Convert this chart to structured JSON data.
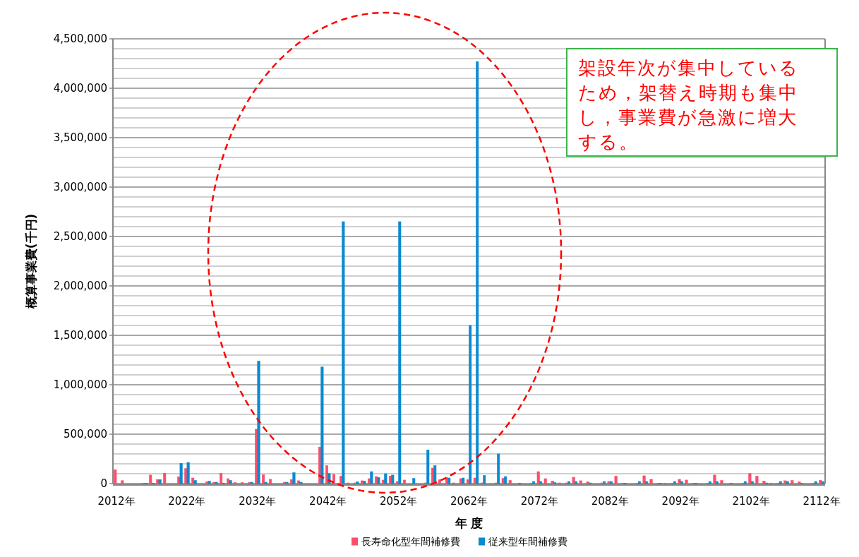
{
  "chart_data": {
    "type": "bar",
    "categories": [
      "2012年",
      null,
      null,
      null,
      null,
      null,
      null,
      null,
      null,
      null,
      "2022年",
      null,
      null,
      null,
      null,
      null,
      null,
      null,
      null,
      null,
      "2032年",
      null,
      null,
      null,
      null,
      null,
      null,
      null,
      null,
      null,
      "2042年",
      null,
      null,
      null,
      null,
      null,
      null,
      null,
      null,
      null,
      "2052年",
      null,
      null,
      null,
      null,
      null,
      null,
      null,
      null,
      null,
      "2062年",
      null,
      null,
      null,
      null,
      null,
      null,
      null,
      null,
      null,
      "2072年",
      null,
      null,
      null,
      null,
      null,
      null,
      null,
      null,
      null,
      "2082年",
      null,
      null,
      null,
      null,
      null,
      null,
      null,
      null,
      null,
      "2092年",
      null,
      null,
      null,
      null,
      null,
      null,
      null,
      null,
      null,
      "2102年",
      null,
      null,
      null,
      null,
      null,
      null,
      null,
      null,
      null,
      "2112年"
    ],
    "xlabel": "年 度",
    "ylabel": "概算事業費(千円)",
    "series": [
      {
        "name": "長寿命化型年間補修費",
        "color": "#ff4d6a",
        "values": [
          140000,
          30000,
          null,
          null,
          5000,
          86000,
          40000,
          105000,
          null,
          69000,
          152000,
          57000,
          null,
          17000,
          14000,
          105000,
          50000,
          10000,
          10000,
          10000,
          550000,
          88000,
          43000,
          null,
          14000,
          40000,
          29000,
          null,
          null,
          370000,
          181000,
          93000,
          74000,
          7000,
          7000,
          29000,
          50000,
          71000,
          36000,
          76000,
          21000,
          36000,
          null,
          null,
          7000,
          157000,
          38000,
          60000,
          7000,
          50000,
          40000,
          57000,
          7000,
          null,
          7000,
          52000,
          31000,
          null,
          null,
          5000,
          121000,
          50000,
          26000,
          7000,
          7000,
          64000,
          29000,
          19000,
          null,
          7000,
          21000,
          74000,
          3000,
          null,
          5000,
          79000,
          43000,
          5000,
          5000,
          5000,
          43000,
          36000,
          5000,
          null,
          5000,
          86000,
          31000,
          null,
          null,
          5000,
          102000,
          74000,
          26000,
          5000,
          5000,
          29000,
          31000,
          17000,
          null,
          5000,
          33000
        ]
      },
      {
        "name": "従来型年間補修費",
        "color": "#0a8ad2",
        "values": [
          null,
          null,
          null,
          null,
          5000,
          5000,
          40000,
          null,
          null,
          205000,
          214000,
          31000,
          null,
          24000,
          14000,
          4000,
          31000,
          null,
          null,
          14000,
          1240000,
          14000,
          null,
          null,
          14000,
          110000,
          14000,
          null,
          null,
          1180000,
          102000,
          null,
          2650000,
          null,
          17000,
          24000,
          121000,
          62000,
          100000,
          86000,
          2650000,
          null,
          52000,
          null,
          340000,
          181000,
          null,
          57000,
          null,
          57000,
          1600000,
          4270000,
          81000,
          null,
          300000,
          71000,
          null,
          5000,
          null,
          21000,
          21000,
          null,
          10000,
          null,
          21000,
          21000,
          null,
          7000,
          null,
          21000,
          21000,
          null,
          5000,
          null,
          21000,
          21000,
          null,
          5000,
          null,
          21000,
          21000,
          null,
          5000,
          null,
          21000,
          21000,
          null,
          5000,
          null,
          21000,
          21000,
          null,
          7000,
          null,
          21000,
          21000,
          null,
          5000,
          null,
          21000,
          21000
        ]
      }
    ],
    "ylim": [
      0,
      4500000
    ],
    "yticks": [
      0,
      {
        "value": 100000,
        "label": null
      },
      {
        "value": 200000,
        "label": null
      },
      {
        "value": 300000,
        "label": null
      },
      {
        "value": 400000,
        "label": null
      },
      {
        "value": 500000,
        "label": "500,000"
      },
      {
        "value": 600000,
        "label": null
      },
      {
        "value": 700000,
        "label": null
      },
      {
        "value": 800000,
        "label": null
      },
      {
        "value": 900000,
        "label": null
      },
      {
        "value": 1000000,
        "label": "1,000,000"
      },
      {
        "value": 1100000,
        "label": null
      },
      {
        "value": 1200000,
        "label": null
      },
      {
        "value": 1300000,
        "label": null
      },
      {
        "value": 1400000,
        "label": null
      },
      {
        "value": 1500000,
        "label": "1,500,000"
      },
      {
        "value": 1600000,
        "label": null
      },
      {
        "value": 1700000,
        "label": null
      },
      {
        "value": 1800000,
        "label": null
      },
      {
        "value": 1900000,
        "label": null
      },
      {
        "value": 2000000,
        "label": "2,000,000"
      },
      {
        "value": 2100000,
        "label": null
      },
      {
        "value": 2200000,
        "label": null
      },
      {
        "value": 2300000,
        "label": null
      },
      {
        "value": 2400000,
        "label": null
      },
      {
        "value": 2500000,
        "label": "2,500,000"
      },
      {
        "value": 2600000,
        "label": null
      },
      {
        "value": 2700000,
        "label": null
      },
      {
        "value": 2800000,
        "label": null
      },
      {
        "value": 2900000,
        "label": null
      },
      {
        "value": 3000000,
        "label": "3,000,000"
      },
      {
        "value": 3100000,
        "label": null
      },
      {
        "value": 3200000,
        "label": null
      },
      {
        "value": 3300000,
        "label": null
      },
      {
        "value": 3400000,
        "label": null
      },
      {
        "value": 3500000,
        "label": "3,500,000"
      },
      {
        "value": 3600000,
        "label": null
      },
      {
        "value": 3700000,
        "label": null
      },
      {
        "value": 3800000,
        "label": null
      },
      {
        "value": 3900000,
        "label": null
      },
      {
        "value": 4000000,
        "label": "4,000,000"
      },
      {
        "value": 4100000,
        "label": null
      },
      {
        "value": 4200000,
        "label": null
      },
      {
        "value": 4300000,
        "label": null
      },
      {
        "value": 4400000,
        "label": null
      },
      {
        "value": 4500000,
        "label": "4,500,000"
      }
    ],
    "grid": "y",
    "legend": "bottom",
    "annotations": [
      "架設年次が集中しているため，架替え時期も集中し，事業費が急激に増大する。"
    ]
  }
}
